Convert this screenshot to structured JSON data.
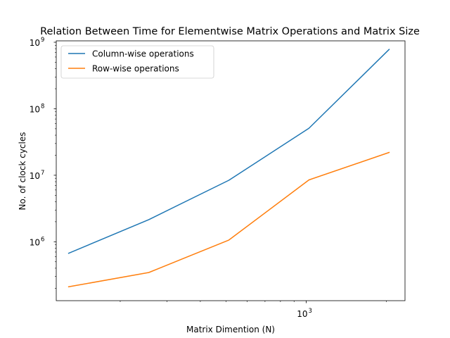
{
  "chart_data": {
    "type": "line",
    "title": "Relation Between Time for Elementwise Matrix Operations and Matrix Size",
    "xlabel": "Matrix Dimention (N)",
    "ylabel": "No. of clock cycles",
    "xscale": "log",
    "yscale": "log",
    "xlim": [
      115,
      2350
    ],
    "ylim": [
      130000,
      1050000000
    ],
    "x": [
      128,
      256,
      512,
      1024,
      2048
    ],
    "x_ticks": [
      {
        "value": 1000,
        "base": "10",
        "exp": "3"
      }
    ],
    "y_ticks": [
      {
        "value": 1000000,
        "base": "10",
        "exp": "6"
      },
      {
        "value": 10000000,
        "base": "10",
        "exp": "7"
      },
      {
        "value": 100000000,
        "base": "10",
        "exp": "8"
      },
      {
        "value": 1000000000,
        "base": "10",
        "exp": "9"
      }
    ],
    "legend_position": "top-left",
    "grid": false,
    "series": [
      {
        "name": "Column-wise operations",
        "color": "#1f77b4",
        "values": [
          670000,
          2150000,
          8400000,
          51000000,
          780000000
        ]
      },
      {
        "name": "Row-wise operations",
        "color": "#ff7f0e",
        "values": [
          210000,
          345000,
          1060000,
          8500000,
          22000000
        ]
      }
    ]
  }
}
